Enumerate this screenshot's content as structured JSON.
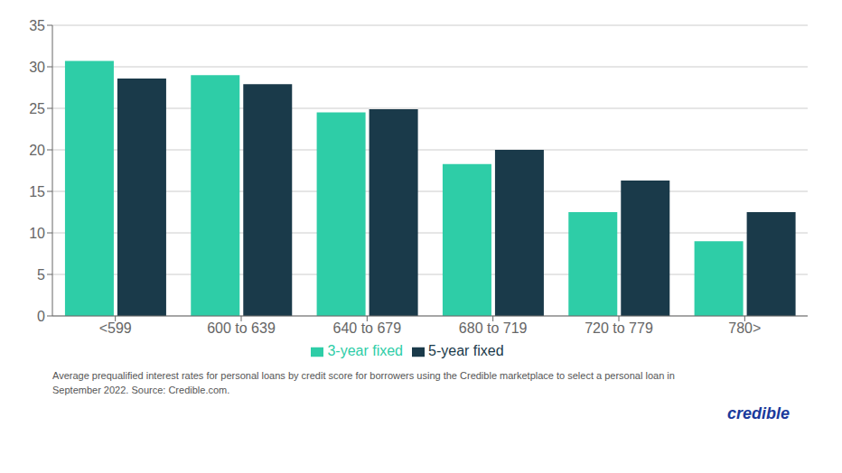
{
  "chart_data": {
    "type": "bar",
    "categories": [
      "<599",
      "600 to 639",
      "640 to 679",
      "680 to 719",
      "720 to 779",
      "780>"
    ],
    "series": [
      {
        "name": "3-year fixed",
        "color": "#2ecda7",
        "values": [
          30.7,
          29.0,
          24.5,
          18.3,
          12.5,
          9.0
        ]
      },
      {
        "name": "5-year fixed",
        "color": "#1a3a4a",
        "values": [
          28.6,
          27.9,
          24.9,
          20.0,
          16.3,
          12.5
        ]
      }
    ],
    "ylim": [
      0,
      35
    ],
    "yticks": [
      0,
      5,
      10,
      15,
      20,
      25,
      30,
      35
    ],
    "grid": true,
    "legend": "bottom",
    "annotations": [
      {
        "text": "Average prequalified interest rates for personal loans by credit score for borrowers using the Credible marketplace to select a personal loan in",
        "color": "#555555"
      },
      {
        "text": "September 2022. Source: Credible.com.",
        "color": "#555555"
      },
      {
        "text": "credible",
        "color": "#1a3a9c"
      }
    ]
  }
}
